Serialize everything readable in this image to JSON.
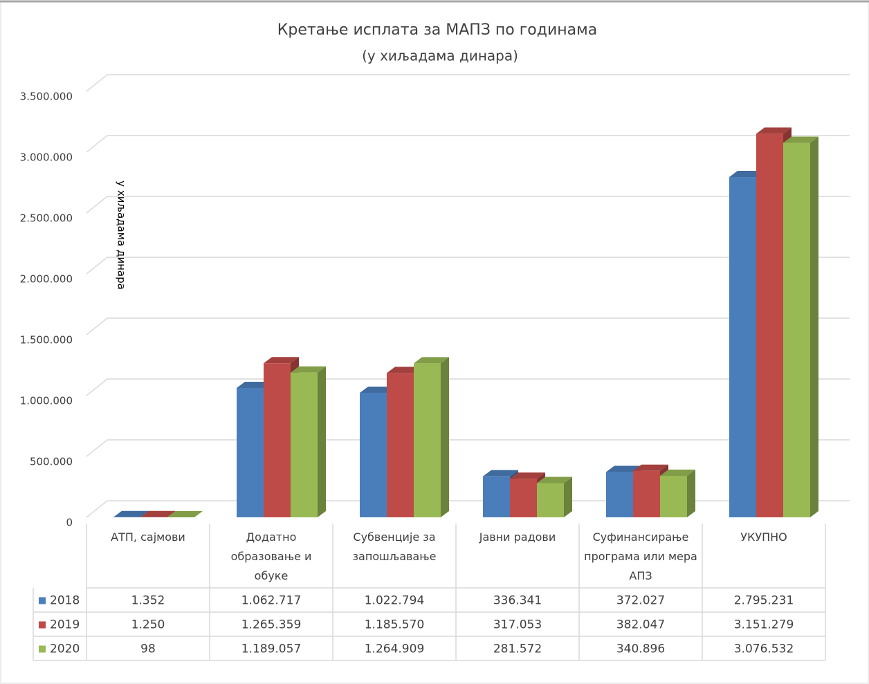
{
  "chart_data": {
    "type": "bar3d",
    "title": "Кретање исплата за МАПЗ по годинама",
    "subtitle": "(у хиљадама динара)",
    "y_label": "у хиљадама динара",
    "categories": [
      "АТП, сајмови",
      "Додатно образовање и обуке",
      "Субвенције за запошљавање",
      "Јавни радови",
      "Суфинансирање програма или мера АПЗ",
      "УКУПНО"
    ],
    "series": [
      {
        "name": "2018",
        "color": "#4a7ebb",
        "values": [
          1352,
          1062717,
          1022794,
          336341,
          372027,
          2795231
        ],
        "value_labels": [
          "1.352",
          "1.062.717",
          "1.022.794",
          "336.341",
          "372.027",
          "2.795.231"
        ]
      },
      {
        "name": "2019",
        "color": "#be4b48",
        "values": [
          1250,
          1265359,
          1185570,
          317053,
          382047,
          3151279
        ],
        "value_labels": [
          "1.250",
          "1.265.359",
          "1.185.570",
          "317.053",
          "382.047",
          "3.151.279"
        ]
      },
      {
        "name": "2020",
        "color": "#98b954",
        "values": [
          98,
          1189057,
          1264909,
          281572,
          340896,
          3076532
        ],
        "value_labels": [
          "98",
          "1.189.057",
          "1.264.909",
          "281.572",
          "340.896",
          "3.076.532"
        ]
      }
    ],
    "ylim": [
      0,
      3500000
    ],
    "yticks": [
      0,
      {
        "value": 500000,
        "label": "500.000"
      },
      {
        "value": 1000000,
        "label": "1.000.000"
      },
      {
        "value": 1500000,
        "label": "1.500.000"
      },
      {
        "value": 2000000,
        "label": "2.000.000"
      },
      {
        "value": 2500000,
        "label": "2.500.000"
      },
      {
        "value": 3000000,
        "label": "3.000.000"
      },
      {
        "value": 3500000,
        "label": "3.500.000"
      }
    ],
    "grid": true,
    "legend": "table"
  }
}
